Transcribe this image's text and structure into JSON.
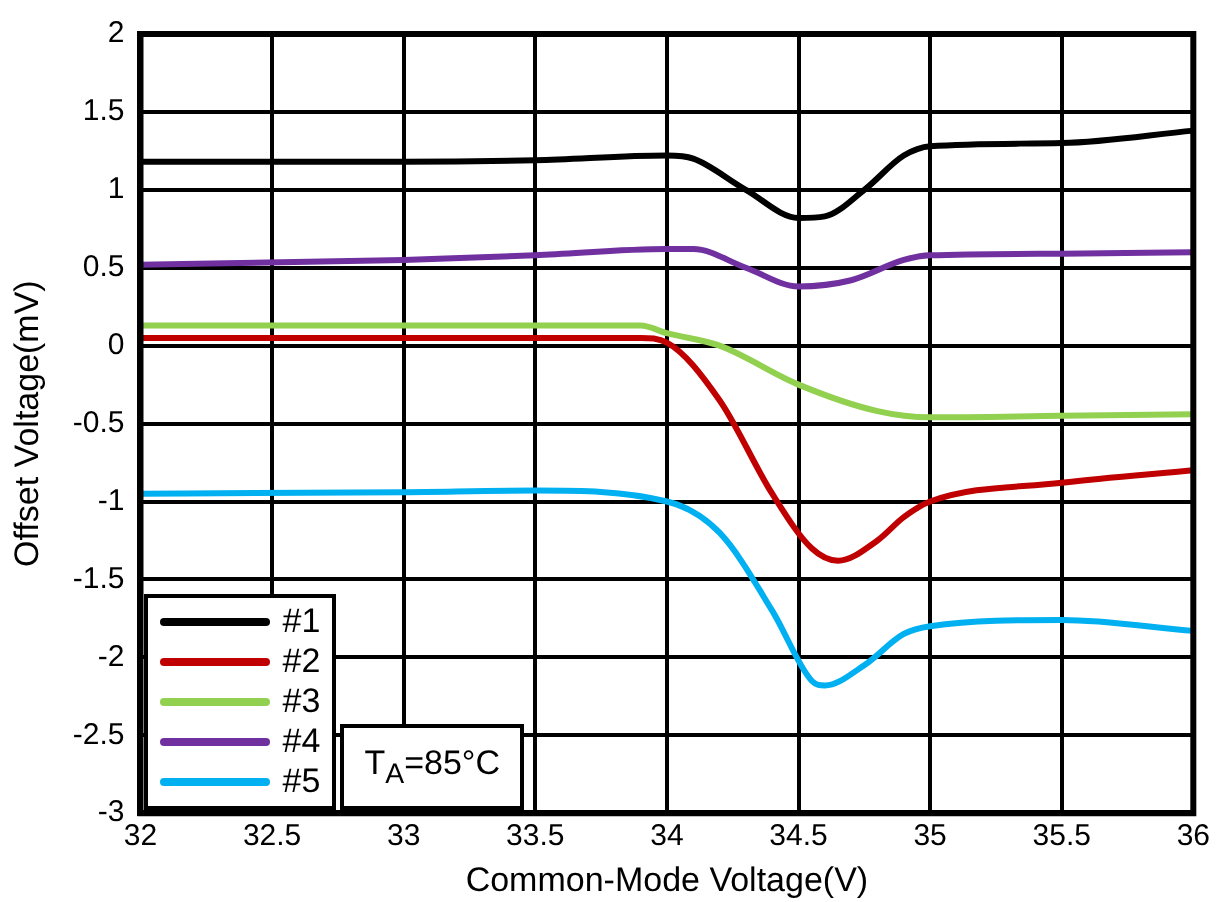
{
  "chart_data": {
    "type": "line",
    "xlabel": "Common-Mode Voltage(V)",
    "ylabel": "Offset Voltage(mV)",
    "xlim": [
      32,
      36
    ],
    "xticks": [
      32,
      32.5,
      33,
      33.5,
      34,
      34.5,
      35,
      35.5,
      36
    ],
    "ylim": [
      -3,
      2
    ],
    "yticks": [
      -3,
      -2.5,
      -2,
      -1.5,
      -1,
      -0.5,
      0,
      0.5,
      1,
      1.5,
      2
    ],
    "grid": true,
    "legend": "bottom left",
    "marker": "none",
    "line_style": "solid",
    "annotations": [
      "T$_{A}$=85°C"
    ],
    "series": [
      {
        "name": "#1",
        "color": "#000000",
        "x": [
          32,
          33,
          33.5,
          34,
          34.1,
          34.3,
          34.5,
          34.6,
          34.75,
          34.9,
          35,
          35.5,
          36
        ],
        "values": [
          1.18,
          1.18,
          1.19,
          1.22,
          1.2,
          1.0,
          0.82,
          0.83,
          1.0,
          1.22,
          1.28,
          1.3,
          1.38
        ]
      },
      {
        "name": "#2",
        "color": "#c00000",
        "x": [
          32,
          33,
          33.9,
          34,
          34.2,
          34.4,
          34.55,
          34.65,
          34.8,
          34.9,
          35,
          35.5,
          36
        ],
        "values": [
          0.05,
          0.05,
          0.05,
          0.02,
          -0.35,
          -0.95,
          -1.3,
          -1.38,
          -1.25,
          -1.1,
          -1.0,
          -0.88,
          -0.8
        ]
      },
      {
        "name": "#3",
        "color": "#92d050",
        "x": [
          32,
          33,
          33.9,
          34,
          34.2,
          34.5,
          34.8,
          35,
          35.5,
          36
        ],
        "values": [
          0.13,
          0.13,
          0.13,
          0.08,
          0,
          -0.25,
          -0.42,
          -0.46,
          -0.45,
          -0.44
        ]
      },
      {
        "name": "#4",
        "color": "#7030a0",
        "x": [
          32,
          33,
          33.5,
          34,
          34.1,
          34.3,
          34.5,
          34.7,
          34.9,
          35,
          35.5,
          36
        ],
        "values": [
          0.52,
          0.55,
          0.58,
          0.62,
          0.62,
          0.5,
          0.38,
          0.42,
          0.55,
          0.58,
          0.59,
          0.6
        ]
      },
      {
        "name": "#5",
        "color": "#00b0f0",
        "x": [
          32,
          33,
          33.5,
          34,
          34.2,
          34.4,
          34.55,
          34.6,
          34.75,
          34.9,
          35,
          35.5,
          36
        ],
        "values": [
          -0.95,
          -0.94,
          -0.93,
          -1.0,
          -1.2,
          -1.7,
          -2.15,
          -2.18,
          -2.05,
          -1.85,
          -1.8,
          -1.76,
          -1.83
        ]
      }
    ]
  }
}
